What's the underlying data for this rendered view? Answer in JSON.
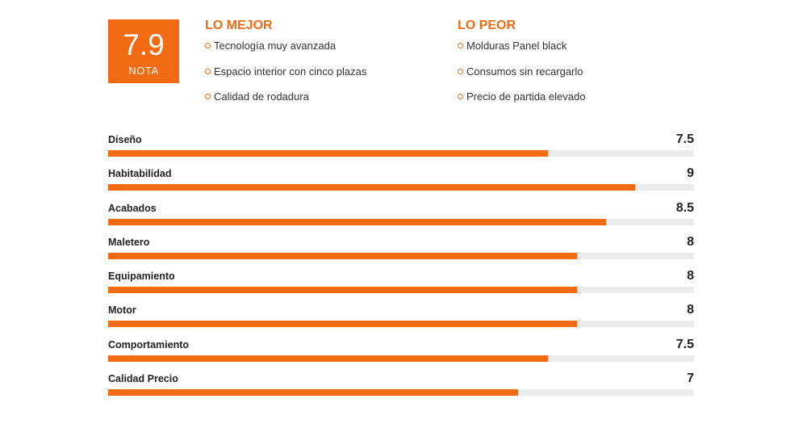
{
  "score": {
    "value": "7.9",
    "label": "NOTA"
  },
  "best": {
    "title": "LO MEJOR",
    "items": [
      "Tecnología muy avanzada",
      "Espacio interior con cinco plazas",
      "Calidad de rodadura"
    ]
  },
  "worst": {
    "title": "LO PEOR",
    "items": [
      "Molduras Panel black",
      "Consumos sin recargarlo",
      "Precio de partida elevado"
    ]
  },
  "ratings": {
    "max": 10,
    "items": [
      {
        "label": "Diseño",
        "value": "7.5",
        "score": 7.5
      },
      {
        "label": "Habitabilidad",
        "value": "9",
        "score": 9
      },
      {
        "label": "Acabados",
        "value": "8.5",
        "score": 8.5
      },
      {
        "label": "Maletero",
        "value": "8",
        "score": 8
      },
      {
        "label": "Equipamiento",
        "value": "8",
        "score": 8
      },
      {
        "label": "Motor",
        "value": "8",
        "score": 8
      },
      {
        "label": "Comportamiento",
        "value": "7.5",
        "score": 7.5
      },
      {
        "label": "Calidad Precio",
        "value": "7",
        "score": 7
      }
    ]
  },
  "colors": {
    "accent": "#f26b13",
    "track": "#ececec"
  }
}
